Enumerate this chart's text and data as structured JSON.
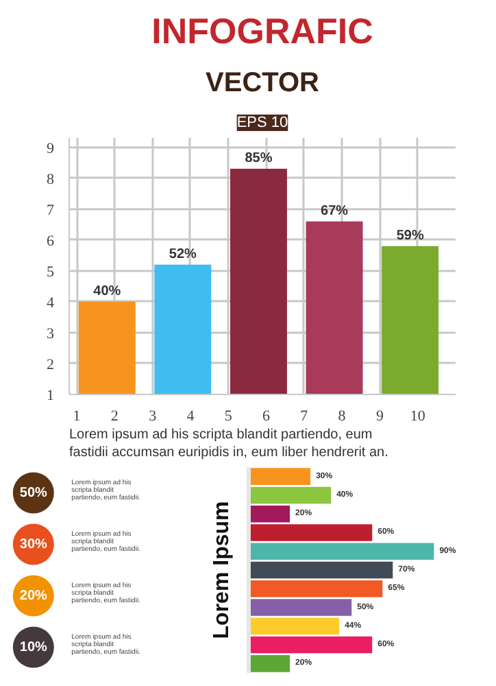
{
  "chart_data": [
    {
      "type": "bar",
      "title": "INFOGRAFIC",
      "subtitle": "VECTOR",
      "annotations": [
        "EPS 10",
        "Lorem ipsum ad his scripta blandit partiendo, eum fastidii accumsan euripidis in, eum liber hendrerit an.",
        {
          "text": "40%",
          "x": 1.8,
          "y": 4.0
        },
        {
          "text": "52%",
          "x": 3.8,
          "y": 5.2
        },
        {
          "text": "85%",
          "x": 5.8,
          "y": 8.3
        },
        {
          "text": "67%",
          "x": 7.8,
          "y": 6.6
        },
        {
          "text": "59%",
          "x": 9.8,
          "y": 5.8
        }
      ],
      "x": [
        1.8,
        3.8,
        5.8,
        7.8,
        9.8
      ],
      "values": [
        4.0,
        5.2,
        8.3,
        6.6,
        5.8
      ],
      "colors": [
        "#f7941d",
        "#3fbdf0",
        "#8b2a3e",
        "#a83a5a",
        "#7aab2c"
      ],
      "xlim": [
        0.8,
        11.0
      ],
      "ylim": [
        1,
        9.3
      ],
      "xticks": [
        1,
        2,
        3,
        4,
        5,
        6,
        7,
        8,
        9,
        10
      ],
      "yticks": [
        1,
        2,
        3,
        4,
        5,
        6,
        7,
        8,
        9
      ],
      "grid": true
    },
    {
      "type": "other",
      "values": [
        50,
        30,
        20,
        10
      ],
      "value_labels": [
        "50%",
        "30%",
        "20%",
        "10%"
      ],
      "colors": [
        "#5a3413",
        "#e8501e",
        "#f39200",
        "#45383f"
      ],
      "annotations": [
        "Lorem ipsum ad his scripta blandit partiendo, eum fastidii.",
        "Lorem ipsum ad his scripta blandit partiendo, eum fastidii.",
        "Lorem ipsum ad his scripta blandit partiendo, eum fastidii.",
        "Lorem ipsum ad his scripta blandit partiendo, eum fastidii."
      ]
    },
    {
      "type": "bar",
      "orientation": "horizontal",
      "ylabel": "Lorem Ipsum",
      "categories": [
        null,
        null,
        null,
        null,
        null,
        null,
        null,
        null,
        null,
        null,
        null
      ],
      "values": [
        30,
        40,
        20,
        60,
        90,
        70,
        65,
        50,
        44,
        60,
        20
      ],
      "colors": [
        "#f7941d",
        "#8dc63f",
        "#a3195b",
        "#be1e2d",
        "#4db6ac",
        "#414b56",
        "#f15a24",
        "#8560a8",
        "#ffcb2b",
        "#e91e63",
        "#5da832"
      ],
      "value_labels": [
        "30%",
        "40%",
        "20%",
        "60%",
        "90%",
        "70%",
        "65%",
        "50%",
        "44%",
        "60%",
        "20%"
      ]
    }
  ]
}
